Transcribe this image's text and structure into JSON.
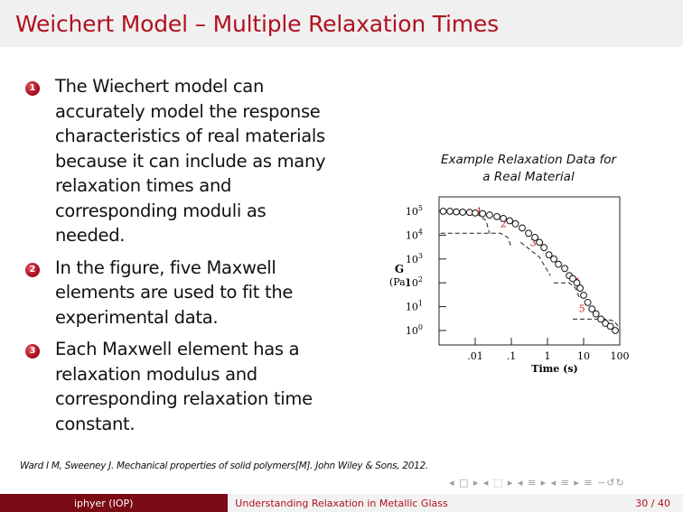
{
  "slide": {
    "title": "Weichert Model – Multiple Relaxation Times",
    "bullets": [
      {
        "num": "1",
        "text": "The Wiechert model can accurately model the response characteristics of real materials because it can include as many relaxation times and corresponding moduli as needed."
      },
      {
        "num": "2",
        "text": "In the figure, five Maxwell elements are used to fit the experimental data."
      },
      {
        "num": "3",
        "text": "Each Maxwell element has a relaxation modulus and corresponding relaxation time constant."
      }
    ],
    "figure_caption_line1": "Example Relaxation Data for",
    "figure_caption_line2": "a Real Material",
    "citation": "Ward I M, Sweeney J. Mechanical properties of solid polymers[M]. John Wiley & Sons, 2012.",
    "nav_symbols": "◂ □ ▸ ◂ ⬚ ▸ ◂ ≡ ▸ ◂ ≡ ▸  ≡  ∽↺↻"
  },
  "chart_data": {
    "type": "scatter",
    "ylabel": "G",
    "yunit": "(Pa)",
    "xlabel": "Time (s)",
    "x_ticks": [
      ".01",
      ".1",
      "1",
      "10",
      "100"
    ],
    "y_ticks": [
      "10^5",
      "10^4",
      "10^3",
      "10^2",
      "10^1",
      "10^0"
    ],
    "xlim": [
      0.001,
      100
    ],
    "ylim": [
      1,
      100000
    ],
    "x_scale": "log",
    "y_scale": "log",
    "element_labels": [
      "1",
      "2",
      "3",
      "4",
      "5"
    ],
    "series": [
      {
        "x": [
          0.0013,
          0.002,
          0.003,
          0.0045,
          0.007,
          0.01,
          0.016,
          0.025,
          0.04,
          0.06,
          0.09,
          0.13,
          0.2,
          0.3,
          0.45,
          0.6,
          0.8,
          1.1,
          1.5,
          2,
          3,
          4,
          5,
          6.5,
          8,
          10,
          13,
          17,
          22,
          30,
          40,
          55,
          75
        ],
        "y": [
          100000,
          100000,
          95000,
          92000,
          90000,
          85000,
          80000,
          70000,
          60000,
          50000,
          40000,
          30000,
          20000,
          12000,
          8000,
          5000,
          3000,
          1500,
          1000,
          600,
          400,
          200,
          150,
          100,
          60,
          30,
          15,
          8,
          5,
          3,
          2,
          1.5,
          1
        ]
      }
    ]
  },
  "footer": {
    "author": "iphyer (IOP)",
    "talk_title": "Understanding Relaxation in Metallic Glass",
    "page": "30 / 40"
  },
  "colors": {
    "title": "#b01020",
    "footer_dark": "#7a0a14",
    "bullet": "#a00818"
  }
}
